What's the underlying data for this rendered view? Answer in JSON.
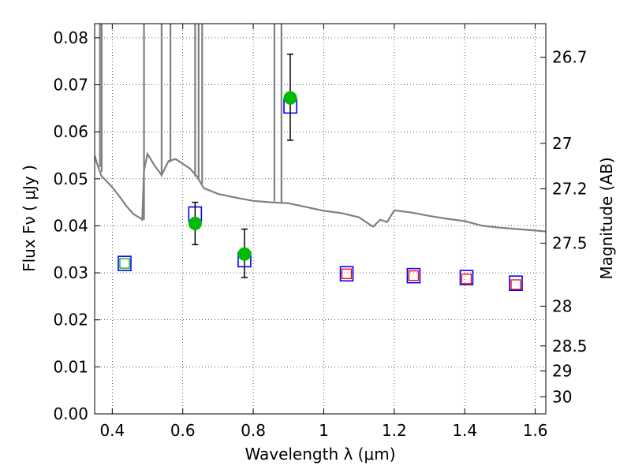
{
  "chart_data": {
    "type": "scatter",
    "title": "",
    "xlabel": "Wavelength  λ (μm)",
    "ylabel": "Flux  Fν  ( μJy )",
    "y2label": "Magnitude (AB)",
    "xlim": [
      0.35,
      1.63
    ],
    "ylim": [
      0.0,
      0.083
    ],
    "grid": true,
    "x_ticks": [
      "0.4",
      "0.6",
      "0.8",
      "1",
      "1.2",
      "1.4",
      "1.6"
    ],
    "x_tick_values": [
      0.4,
      0.6,
      0.8,
      1.0,
      1.2,
      1.4,
      1.6
    ],
    "y_ticks": [
      "0.00",
      "0.01",
      "0.02",
      "0.03",
      "0.04",
      "0.05",
      "0.06",
      "0.07",
      "0.08"
    ],
    "y_tick_values": [
      0.0,
      0.01,
      0.02,
      0.03,
      0.04,
      0.05,
      0.06,
      0.07,
      0.08
    ],
    "mag_ticks": [
      "26.7",
      "27",
      "27.2",
      "27.5",
      "28",
      "28.5",
      "29",
      "30"
    ],
    "mag_tick_values": [
      26.7,
      27.0,
      27.2,
      27.5,
      28.0,
      28.5,
      29.0,
      30.0
    ],
    "series": [
      {
        "role": "model-spectrum",
        "style": "line",
        "color": "#808080",
        "x": [
          0.35,
          0.36,
          0.37,
          0.38,
          0.4,
          0.42,
          0.44,
          0.46,
          0.48,
          0.485,
          0.49,
          0.5,
          0.52,
          0.54,
          0.56,
          0.58,
          0.6,
          0.62,
          0.64,
          0.66,
          0.7,
          0.75,
          0.8,
          0.85,
          0.9,
          0.95,
          1.0,
          1.05,
          1.1,
          1.12,
          1.14,
          1.16,
          1.18,
          1.2,
          1.25,
          1.3,
          1.35,
          1.4,
          1.45,
          1.5,
          1.55,
          1.6,
          1.63
        ],
        "y": [
          0.0549,
          0.0525,
          0.0505,
          0.0498,
          0.0482,
          0.0463,
          0.0442,
          0.0425,
          0.0416,
          0.0413,
          0.0518,
          0.0553,
          0.0528,
          0.0508,
          0.0538,
          0.0542,
          0.0532,
          0.0522,
          0.0505,
          0.048,
          0.0468,
          0.046,
          0.0453,
          0.045,
          0.0448,
          0.044,
          0.0432,
          0.0427,
          0.0418,
          0.0408,
          0.0398,
          0.0413,
          0.0408,
          0.0433,
          0.0428,
          0.0421,
          0.0415,
          0.041,
          0.04,
          0.0396,
          0.0393,
          0.039,
          0.0388
        ]
      },
      {
        "role": "model-bandpass-flux",
        "style": "open-square",
        "color": "#0000ff",
        "x": [
          0.435,
          0.635,
          0.775,
          0.905,
          1.065,
          1.255,
          1.405,
          1.545
        ],
        "y": [
          0.032,
          0.0425,
          0.0328,
          0.0655,
          0.0298,
          0.0294,
          0.029,
          0.0278
        ]
      },
      {
        "role": "inner-square",
        "style": "open-square-small",
        "colors": [
          "#00aa00",
          "#ff0000",
          "#ff0000",
          "#ff0000",
          "#ff0000"
        ],
        "x": [
          0.435,
          1.065,
          1.255,
          1.405,
          1.545
        ],
        "y": [
          0.032,
          0.0298,
          0.0294,
          0.0287,
          0.0275
        ]
      },
      {
        "role": "observed",
        "style": "filled-circle-errorbar",
        "color": "#00bb00",
        "x": [
          0.635,
          0.775,
          0.905
        ],
        "y": [
          0.0405,
          0.034,
          0.0672
        ],
        "yerr_low": [
          0.0045,
          0.005,
          0.009
        ],
        "yerr_high": [
          0.0045,
          0.0053,
          0.0093
        ]
      }
    ]
  }
}
